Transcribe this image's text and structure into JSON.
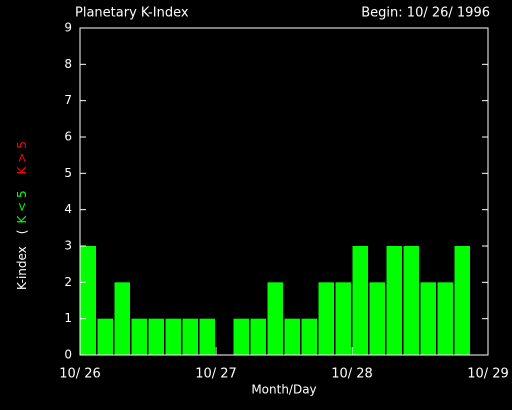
{
  "chart_data": {
    "type": "bar",
    "title": "Planetary K-Index",
    "subtitle": "Begin: 10/ 26/ 1996",
    "x_label": "Month/Day",
    "y_label": {
      "main": "K-index",
      "open": "(",
      "low": "K < 5",
      "high": "K > 5"
    },
    "low_color": "#00ff00",
    "high_color": "#ff0000",
    "values": [
      3,
      1,
      2,
      1,
      1,
      1,
      1,
      1,
      0,
      1,
      1,
      2,
      1,
      1,
      2,
      2,
      3,
      2,
      3,
      3,
      2,
      2,
      3,
      null
    ],
    "color": "#00ff00",
    "xlim": [
      0,
      24
    ],
    "xticks": [
      {
        "value": 0,
        "label": "10/ 26"
      },
      {
        "value": 8,
        "label": "10/ 27"
      },
      {
        "value": 16,
        "label": "10/ 28"
      },
      {
        "value": 24,
        "label": "10/ 29"
      }
    ],
    "ylim": [
      0,
      9
    ],
    "yticks": [
      0,
      1,
      2,
      3,
      4,
      5,
      6,
      7,
      8,
      9
    ]
  }
}
